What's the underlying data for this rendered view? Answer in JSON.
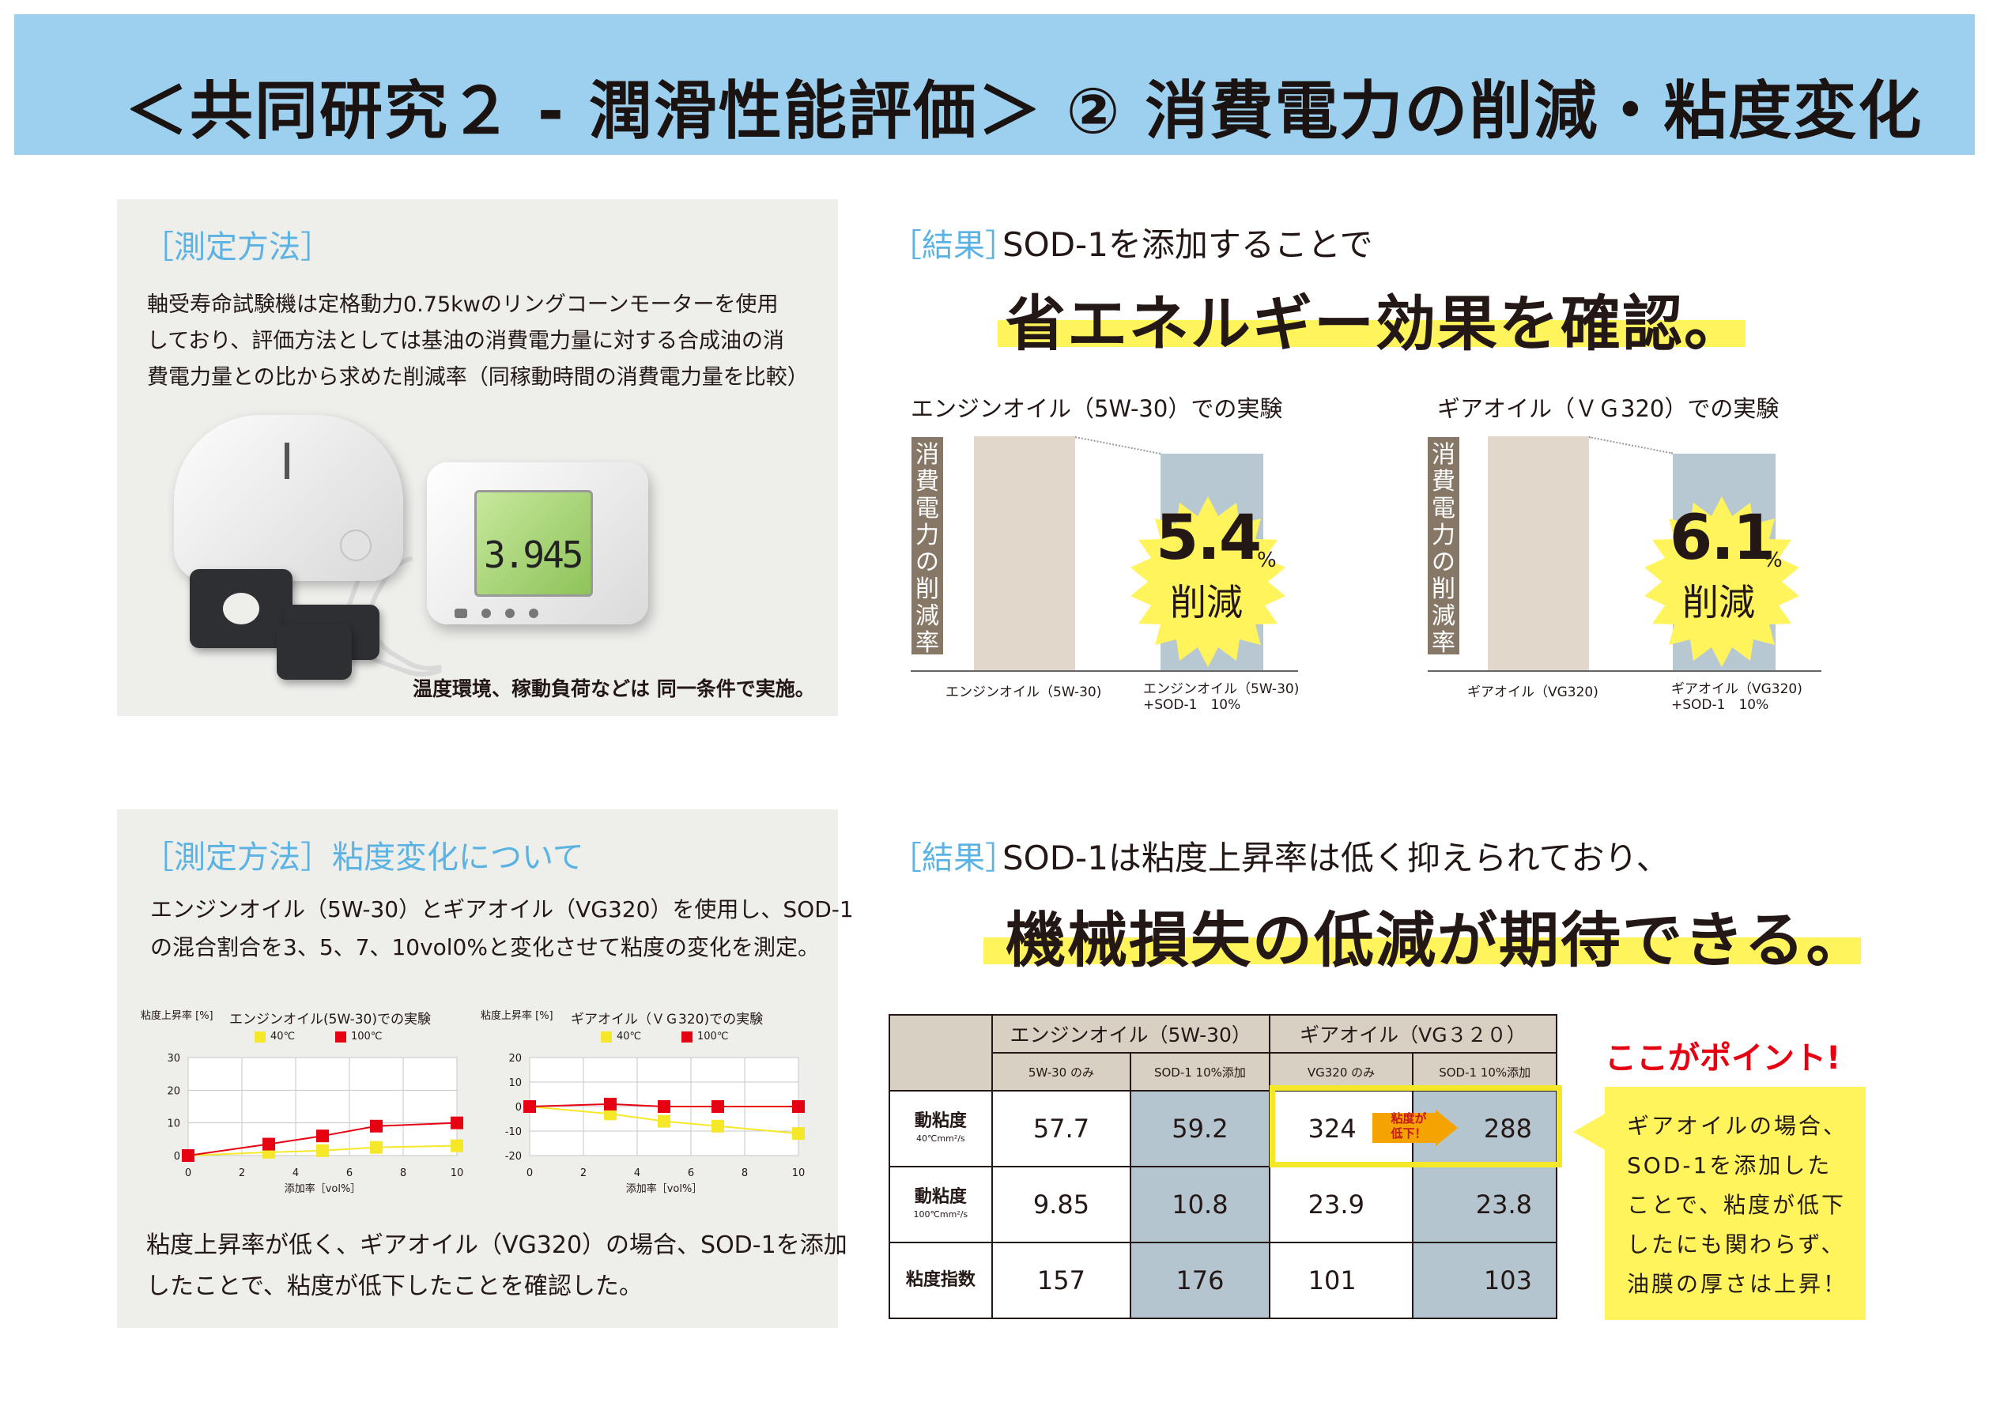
{
  "header": {
    "title": "＜共同研究２ - 潤滑性能評価＞ ② 消費電力の削減・粘度変化"
  },
  "method1": {
    "heading": "［測定方法］",
    "lines": [
      "軸受寿命試験機は定格動力0.75kwのリングコーンモーターを使用",
      "しており、評価方法としては基油の消費電力量に対する合成油の消",
      "費電力量との比から求めた削減率（同稼動時間の消費電力量を比較）"
    ],
    "meter_reading": "3.945",
    "caption": "温度環境、稼動負荷などは 同一条件で実施。"
  },
  "result1": {
    "label": "［結果］",
    "subtitle": "SOD-1を添加することで",
    "headline": "省エネルギー効果を確認。"
  },
  "energy_charts": [
    {
      "title": "エンジンオイル（5W-30）での実験",
      "ylabel": "消費電力の削減率",
      "reduction_value": "5.4",
      "reduction_unit": "%",
      "reduction_text": "削減",
      "bar1_label": "エンジンオイル（5W-30)",
      "bar2_label_line1": "エンジンオイル（5W-30)",
      "bar2_label_line2": "+SOD-1　10%"
    },
    {
      "title": "ギアオイル（ＶＧ320）での実験",
      "ylabel": "消費電力の削減率",
      "reduction_value": "6.1",
      "reduction_unit": "%",
      "reduction_text": "削減",
      "bar1_label": "ギアオイル（VG320)",
      "bar2_label_line1": "ギアオイル（VG320)",
      "bar2_label_line2": "+SOD-1　10%"
    }
  ],
  "method2": {
    "heading": "［測定方法］粘度変化について",
    "lines": [
      "エンジンオイル（5W-30）とギアオイル（VG320）を使用し、SOD-1",
      "の混合割合を3、5、7、10vol0%と変化させて粘度の変化を測定。"
    ],
    "summary_lines": [
      "粘度上昇率が低く、ギアオイル（VG320）の場合、SOD-1を添加",
      "したことで、粘度が低下したことを確認した。"
    ]
  },
  "chart_data": [
    {
      "type": "line",
      "title": "エンジンオイル(5W-30)での実験",
      "ylabel": "粘度上昇率 [%]",
      "xlabel": "添加率［vol%］",
      "x": [
        0,
        3,
        5,
        7,
        10
      ],
      "xticks": [
        0,
        2,
        4,
        6,
        8,
        10
      ],
      "yticks": [
        0,
        10,
        20,
        30
      ],
      "ylim": [
        0,
        30
      ],
      "xlim": [
        0,
        10
      ],
      "series": [
        {
          "name": "40℃",
          "color": "#f5e829",
          "values": [
            0,
            1,
            1.5,
            2.5,
            3
          ]
        },
        {
          "name": "100℃",
          "color": "#e60012",
          "values": [
            0,
            3.5,
            6,
            9,
            10
          ]
        }
      ]
    },
    {
      "type": "line",
      "title": "ギアオイル（ＶＧ320)での実験",
      "ylabel": "粘度上昇率 [%]",
      "xlabel": "添加率［vol%］",
      "x": [
        0,
        3,
        5,
        7,
        10
      ],
      "xticks": [
        0,
        2,
        4,
        6,
        8,
        10
      ],
      "yticks": [
        -20,
        -10,
        0,
        10,
        20
      ],
      "ylim": [
        -20,
        20
      ],
      "xlim": [
        0,
        10
      ],
      "series": [
        {
          "name": "40℃",
          "color": "#f5e829",
          "values": [
            0,
            -3,
            -6,
            -8,
            -11
          ]
        },
        {
          "name": "100℃",
          "color": "#e60012",
          "values": [
            0,
            1,
            0,
            0,
            0
          ]
        }
      ]
    }
  ],
  "result2": {
    "label": "［結果］",
    "subtitle": "SOD-1は粘度上昇率は低く抑えられており、",
    "headline": "機械損失の低減が期待できる。"
  },
  "table": {
    "group_headers": [
      "エンジンオイル（5W-30）",
      "ギアオイル（VG３２０）"
    ],
    "sub_headers": [
      "5W-30 のみ",
      "SOD-1 10%添加",
      "VG320 のみ",
      "SOD-1 10%添加"
    ],
    "rows": [
      {
        "label": "動粘度",
        "sublabel": "40℃mm²/s",
        "values": [
          "57.7",
          "59.2",
          "324",
          "288"
        ]
      },
      {
        "label": "動粘度",
        "sublabel": "100℃mm²/s",
        "values": [
          "9.85",
          "10.8",
          "23.9",
          "23.8"
        ]
      },
      {
        "label": "粘度指数",
        "sublabel": "",
        "values": [
          "157",
          "176",
          "101",
          "103"
        ]
      }
    ],
    "drop_note_line1": "粘度が",
    "drop_note_line2": "低下！"
  },
  "point": {
    "title": "ここがポイント!",
    "lines": [
      "ギアオイルの場合、",
      "SOD-1を添加した",
      "ことで、粘度が低下",
      "したにも関わらず、",
      "油膜の厚さは上昇！"
    ]
  }
}
